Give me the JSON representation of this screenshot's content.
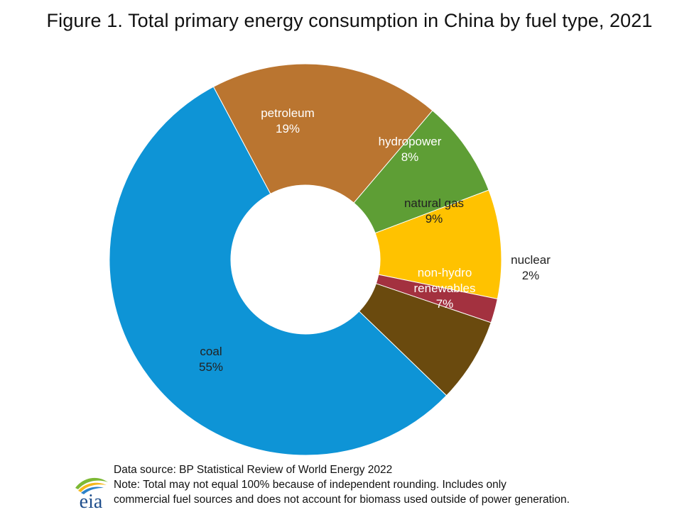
{
  "title": "Figure 1. Total primary energy consumption in China by fuel type, 2021",
  "chart_data": {
    "type": "pie",
    "title": "Figure 1. Total primary energy consumption in China by fuel type, 2021",
    "donut": true,
    "slices": [
      {
        "name": "petroleum",
        "value": 19,
        "label": "19%",
        "color": "#BA7530",
        "label_color": "#ffffff"
      },
      {
        "name": "hydropower",
        "value": 8,
        "label": "8%",
        "color": "#5E9E35",
        "label_color": "#ffffff"
      },
      {
        "name": "natural gas",
        "value": 9,
        "label": "9%",
        "color": "#FFC200",
        "label_color": "#222222"
      },
      {
        "name": "nuclear",
        "value": 2,
        "label": "2%",
        "color": "#A3313F",
        "label_color": "#222222"
      },
      {
        "name": "non-hydro renewables",
        "value": 7,
        "label": "7%",
        "color": "#6A4A0E",
        "label_color": "#ffffff"
      },
      {
        "name": "coal",
        "value": 55,
        "label": "55%",
        "color": "#0E94D6",
        "label_color": "#222222"
      }
    ]
  },
  "footer": {
    "source": "Data source: BP Statistical Review of World Energy 2022",
    "note_line1": "Note: Total may not equal 100% because of independent rounding. Includes only",
    "note_line2": "commercial fuel sources and does not account for biomass used outside of power generation.",
    "logo_text": "eia"
  }
}
